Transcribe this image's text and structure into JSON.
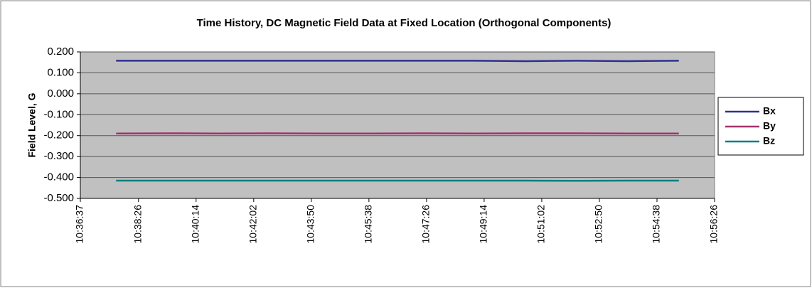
{
  "chart_data": {
    "type": "line",
    "title": "Time History, DC Magnetic Field Data at Fixed Location (Orthogonal Components)",
    "y_label": "Field Level, G",
    "x": [
      38264,
      38360,
      38456,
      38552,
      38648,
      38744,
      38840,
      38936,
      39032,
      39128,
      39224,
      39319
    ],
    "series": [
      {
        "name": "Bx",
        "color": "#2e3192",
        "values": [
          0.158,
          0.158,
          0.158,
          0.158,
          0.158,
          0.158,
          0.158,
          0.158,
          0.156,
          0.158,
          0.156,
          0.158
        ]
      },
      {
        "name": "By",
        "color": "#a0336b",
        "values": [
          -0.19,
          -0.189,
          -0.19,
          -0.189,
          -0.19,
          -0.19,
          -0.189,
          -0.19,
          -0.189,
          -0.189,
          -0.19,
          -0.19
        ]
      },
      {
        "name": "Bz",
        "color": "#008080",
        "values": [
          -0.415,
          -0.415,
          -0.415,
          -0.415,
          -0.415,
          -0.415,
          -0.415,
          -0.415,
          -0.415,
          -0.416,
          -0.415,
          -0.415
        ]
      }
    ],
    "xlim": [
      38197,
      39386
    ],
    "xticks": [
      {
        "value": 38197,
        "label": "10:36:37"
      },
      {
        "value": 38306,
        "label": "10:38:26"
      },
      {
        "value": 38414,
        "label": "10:40:14"
      },
      {
        "value": 38522,
        "label": "10:42:02"
      },
      {
        "value": 38630,
        "label": "10:43:50"
      },
      {
        "value": 38738,
        "label": "10:45:38"
      },
      {
        "value": 38846,
        "label": "10:47:26"
      },
      {
        "value": 38954,
        "label": "10:49:14"
      },
      {
        "value": 39062,
        "label": "10:51:02"
      },
      {
        "value": 39170,
        "label": "10:52:50"
      },
      {
        "value": 39278,
        "label": "10:54:38"
      },
      {
        "value": 39386,
        "label": "10:56:26"
      }
    ],
    "ylim": [
      -0.5,
      0.2
    ],
    "yticks": [
      {
        "value": 0.2,
        "label": "0.200"
      },
      {
        "value": 0.1,
        "label": "0.100"
      },
      {
        "value": 0,
        "label": "0.000"
      },
      {
        "value": -0.1,
        "label": "-0.100"
      },
      {
        "value": -0.2,
        "label": "-0.200"
      },
      {
        "value": -0.3,
        "label": "-0.300"
      },
      {
        "value": -0.4,
        "label": "-0.400"
      },
      {
        "value": -0.5,
        "label": "-0.500"
      }
    ],
    "grid": true,
    "legend": "right"
  }
}
